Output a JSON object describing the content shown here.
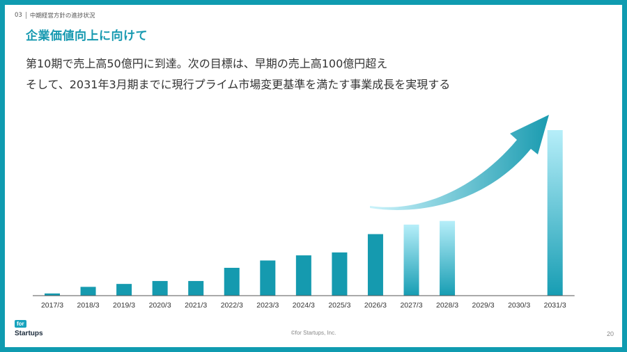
{
  "header": {
    "section_number": "03",
    "section_name": "中期経営方針の進捗状況"
  },
  "title": "企業価値向上に向けて",
  "lead": {
    "line1": "第10期で売上高50億円に到達。次の目標は、早期の売上高100億円超え",
    "line2": "そして、2031年3月期までに現行プライム市場変更基準を満たす事業成長を実現する"
  },
  "colors": {
    "accent": "#0f9bb0",
    "bar_solid": "#159aaf",
    "bar_gradient_top": "#b6eef9",
    "bar_gradient_bottom": "#179db3",
    "arrow_start": "#ccf3fb",
    "arrow_end": "#1a9bb0"
  },
  "chart_data": {
    "type": "bar",
    "categories": [
      "2017/3",
      "2018/3",
      "2019/3",
      "2020/3",
      "2021/3",
      "2022/3",
      "2023/3",
      "2024/3",
      "2025/3",
      "2026/3",
      "2027/3",
      "2028/3",
      "2029/3",
      "2030/3",
      "2031/3"
    ],
    "values": [
      1.5,
      6,
      8,
      10,
      10,
      19,
      24,
      27.5,
      29.5,
      42,
      48.5,
      51,
      0,
      0,
      113
    ],
    "styles": [
      "solid",
      "solid",
      "solid",
      "solid",
      "solid",
      "solid",
      "solid",
      "solid",
      "solid",
      "solid",
      "gradient",
      "gradient",
      "none",
      "none",
      "gradient"
    ],
    "ylim": [
      0,
      120
    ],
    "title": "",
    "xlabel": "",
    "ylabel": "",
    "growth_arrow": true,
    "grid": false
  },
  "footer": {
    "brand_small": "for",
    "brand_name": "Startups",
    "copyright": "©for Startups, Inc.",
    "page_number": "20"
  }
}
